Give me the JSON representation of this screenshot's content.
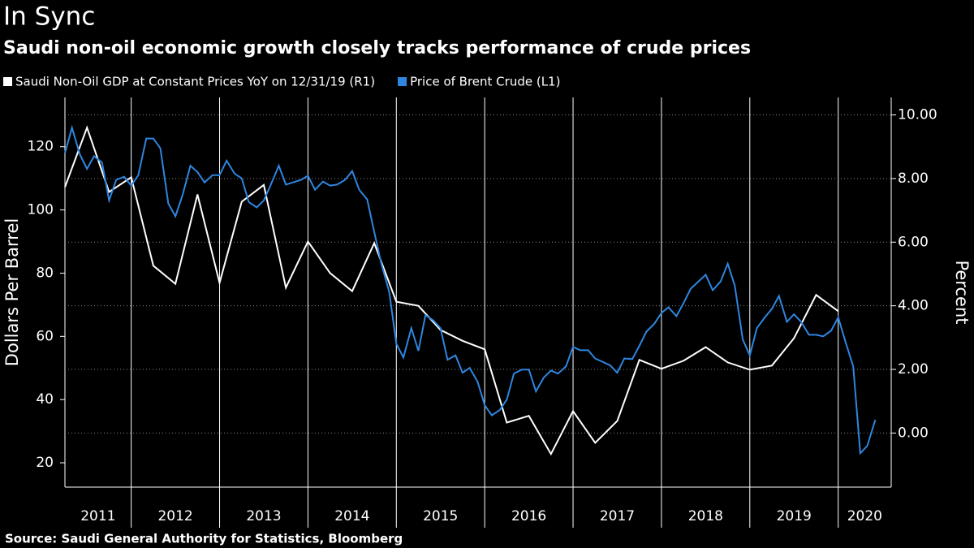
{
  "chart_data": {
    "type": "line",
    "title": "In Sync",
    "subtitle": "Saudi non-oil economic growth closely tracks performance of crude prices",
    "source": "Source: Saudi General Authority for Statistics, Bloomberg",
    "ylabel": "Dollars Per Barrel",
    "y2label": "Percent",
    "xlim": [
      2011.25,
      2020.6
    ],
    "xticks": [
      2011,
      2012,
      2013,
      2014,
      2015,
      2016,
      2017,
      2018,
      2019,
      2020
    ],
    "ylim": [
      12.3,
      135.6
    ],
    "yticks": [
      20,
      40,
      60,
      80,
      100,
      120
    ],
    "y2lim": [
      -1.7,
      10.55
    ],
    "y2ticks": [
      {
        "value": 0,
        "label": "0.00"
      },
      {
        "value": 2,
        "label": "2.00"
      },
      {
        "value": 4,
        "label": "4.00"
      },
      {
        "value": 6,
        "label": "6.00"
      },
      {
        "value": 8,
        "label": "8.00"
      },
      {
        "value": 10,
        "label": "10.00"
      }
    ],
    "grid": true,
    "series": [
      {
        "name": "Saudi Non-Oil GDP at Constant Prices YoY on 12/31/19 (R1)",
        "color": "#ffffff",
        "axis": "y2",
        "x": [
          2011.25,
          2011.5,
          2011.75,
          2012,
          2012.25,
          2012.5,
          2012.75,
          2013,
          2013.25,
          2013.5,
          2013.75,
          2014,
          2014.25,
          2014.5,
          2014.75,
          2015,
          2015.25,
          2015.5,
          2015.75,
          2016,
          2016.25,
          2016.5,
          2016.75,
          2017,
          2017.25,
          2017.5,
          2017.75,
          2018,
          2018.25,
          2018.5,
          2018.75,
          2019,
          2019.25,
          2019.5,
          2019.75,
          2020
        ],
        "values": [
          7.73,
          9.6,
          7.58,
          8.04,
          5.26,
          4.69,
          7.5,
          4.72,
          7.27,
          7.8,
          4.57,
          6.02,
          5.03,
          4.46,
          5.97,
          4.13,
          4.0,
          3.24,
          2.9,
          2.63,
          0.33,
          0.54,
          -0.66,
          0.69,
          -0.31,
          0.38,
          2.3,
          2.02,
          2.27,
          2.7,
          2.22,
          1.99,
          2.12,
          2.98,
          4.34,
          3.83
        ]
      },
      {
        "name": "Price of Brent Crude (L1)",
        "color": "#2f86e0",
        "x": [
          2011.25,
          2011.33,
          2011.42,
          2011.5,
          2011.58,
          2011.67,
          2011.75,
          2011.83,
          2011.92,
          2012,
          2012.08,
          2012.17,
          2012.25,
          2012.33,
          2012.42,
          2012.5,
          2012.58,
          2012.67,
          2012.75,
          2012.83,
          2012.92,
          2013,
          2013.08,
          2013.17,
          2013.25,
          2013.33,
          2013.42,
          2013.5,
          2013.58,
          2013.67,
          2013.75,
          2013.83,
          2013.92,
          2014,
          2014.08,
          2014.17,
          2014.25,
          2014.33,
          2014.42,
          2014.5,
          2014.58,
          2014.67,
          2014.75,
          2014.83,
          2014.92,
          2015,
          2015.08,
          2015.17,
          2015.25,
          2015.33,
          2015.42,
          2015.5,
          2015.58,
          2015.67,
          2015.75,
          2015.83,
          2015.92,
          2016,
          2016.08,
          2016.17,
          2016.25,
          2016.33,
          2016.42,
          2016.5,
          2016.58,
          2016.67,
          2016.75,
          2016.83,
          2016.92,
          2017,
          2017.08,
          2017.17,
          2017.25,
          2017.33,
          2017.42,
          2017.5,
          2017.58,
          2017.67,
          2017.75,
          2017.83,
          2017.92,
          2018,
          2018.08,
          2018.17,
          2018.25,
          2018.33,
          2018.42,
          2018.5,
          2018.58,
          2018.67,
          2018.75,
          2018.83,
          2018.92,
          2019,
          2019.08,
          2019.17,
          2019.25,
          2019.33,
          2019.42,
          2019.5,
          2019.58,
          2019.67,
          2019.75,
          2019.83,
          2019.92,
          2020,
          2020.08,
          2020.17,
          2020.25,
          2020.33,
          2020.42
        ],
        "values": [
          118,
          126,
          117.5,
          113,
          117,
          115,
          103,
          109.5,
          110.5,
          107.7,
          111,
          122.6,
          122.6,
          119.5,
          102,
          98,
          104.6,
          114,
          112,
          108.7,
          111,
          111,
          115.6,
          111.5,
          110,
          102.5,
          100.8,
          103,
          108,
          114,
          108,
          108.7,
          109.5,
          110.8,
          106.4,
          109,
          107.7,
          108,
          109.5,
          112.3,
          106.4,
          103.3,
          93,
          83,
          74,
          57.7,
          53.3,
          62.6,
          55.4,
          66.7,
          65,
          62.6,
          52.6,
          54,
          48.5,
          50,
          45.6,
          38.2,
          35,
          36.7,
          40,
          48.2,
          49.5,
          49.5,
          42.6,
          47,
          49.2,
          48.2,
          50.5,
          56.7,
          55.6,
          55.6,
          53,
          52,
          50.8,
          48.5,
          53,
          52.8,
          57,
          61.5,
          64,
          67.4,
          69.2,
          66.4,
          70.5,
          75,
          77.4,
          79.5,
          74.6,
          77.4,
          83,
          76,
          59,
          54,
          62.6,
          66,
          68.7,
          72.8,
          64.6,
          67,
          64.6,
          60.5,
          60.5,
          60,
          61.8,
          66,
          58.5,
          50.5,
          23,
          25.4,
          33.6
        ]
      }
    ]
  }
}
